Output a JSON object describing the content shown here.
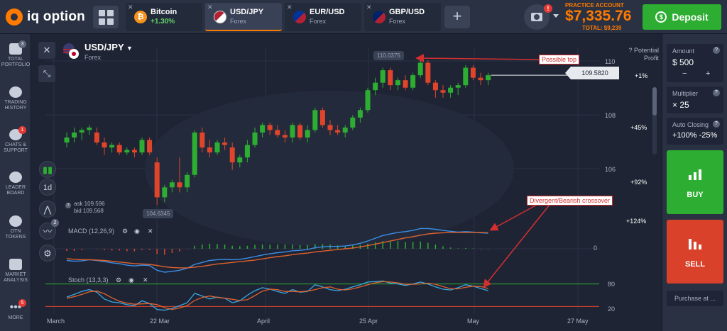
{
  "app": {
    "logo_text": "iq option"
  },
  "tabs": [
    {
      "name": "Bitcoin",
      "sub": "+1.30%",
      "flag": "bitcoin-icon",
      "active": false
    },
    {
      "name": "USD/JPY",
      "sub": "Forex",
      "flag": "us-jp-flag",
      "active": true
    },
    {
      "name": "EUR/USD",
      "sub": "Forex",
      "flag": "eu-us-flag",
      "active": false
    },
    {
      "name": "GBP/USD",
      "sub": "Forex",
      "flag": "gb-us-flag",
      "active": false
    }
  ],
  "account": {
    "type": "PRACTICE ACCOUNT",
    "balance": "$7,335.76",
    "total": "TOTAL: $9,239",
    "camera_badge": "!",
    "deposit_label": "Deposit"
  },
  "sidebar": [
    {
      "label": "TOTAL PORTFOLIO",
      "icon": "portfolio-icon",
      "badge": "3"
    },
    {
      "label": "TRADING HISTORY",
      "icon": "history-icon",
      "badge": ""
    },
    {
      "label": "CHATS & SUPPORT",
      "icon": "chat-icon",
      "badge": "1"
    },
    {
      "label": "LEADER BOARD",
      "icon": "leaderboard-icon",
      "badge": ""
    },
    {
      "label": "OTN TOKENS",
      "icon": "otn-icon",
      "badge": ""
    },
    {
      "label": "MARKET ANALYSIS",
      "icon": "market-analysis-icon",
      "badge": ""
    },
    {
      "label": "MORE",
      "icon": "more-icon",
      "badge": "5"
    }
  ],
  "chart": {
    "pair": "USD/JPY",
    "category": "Forex",
    "timeframe": "1d",
    "ask": "ask 109.596",
    "bid": "bid 109.568",
    "current_price": "109.5820",
    "high_callout": "110.0375",
    "low_callout": "104.6345",
    "potential_profit": "Potential Profit",
    "indicators_badge": "2",
    "annotations": {
      "top": "Possible top",
      "crossover": "Divergent/Bearish crossover"
    },
    "macd_label": "MACD (12,26,9)",
    "stoch_label": "Stoch (13,3,3)",
    "price_axis": [
      "110",
      "108",
      "106"
    ],
    "pct_axis": [
      "+1%",
      "+45%",
      "+92%",
      "+124%"
    ],
    "macd_axis": [
      "0"
    ],
    "stoch_axis": [
      "80",
      "20"
    ],
    "x_axis": [
      "March",
      "22 Mar",
      "April",
      "25 Apr",
      "May",
      "27 May"
    ],
    "colors": {
      "up": "#2dae32",
      "down": "#e0452c",
      "macd": "#3a8ee6",
      "signal": "#e0622c",
      "stoch_k": "#3aa9e6",
      "stoch_d": "#e0622c",
      "annotation": "#d32f2f"
    }
  },
  "chart_data": {
    "type": "candlestick",
    "y_unit": "JPY per USD",
    "candles": [
      [
        107.1,
        107.5,
        106.9,
        107.3
      ],
      [
        107.3,
        107.7,
        107.1,
        107.5
      ],
      [
        107.5,
        107.7,
        107.2,
        107.6
      ],
      [
        107.6,
        107.8,
        107.4,
        107.7
      ],
      [
        107.5,
        107.7,
        107.0,
        107.1
      ],
      [
        107.1,
        107.3,
        106.6,
        106.9
      ],
      [
        106.9,
        107.1,
        106.7,
        107.0
      ],
      [
        107.0,
        107.1,
        106.6,
        106.7
      ],
      [
        106.7,
        106.9,
        106.6,
        106.8
      ],
      [
        106.8,
        106.9,
        106.5,
        106.7
      ],
      [
        106.7,
        107.3,
        106.6,
        107.2
      ],
      [
        107.2,
        107.3,
        106.6,
        106.7
      ],
      [
        106.3,
        106.5,
        104.6,
        104.9
      ],
      [
        104.9,
        105.4,
        104.7,
        105.3
      ],
      [
        105.3,
        105.6,
        105.1,
        105.5
      ],
      [
        105.5,
        106.5,
        105.1,
        105.3
      ],
      [
        105.3,
        105.9,
        105.1,
        105.8
      ],
      [
        105.8,
        107.6,
        105.7,
        107.5
      ],
      [
        107.5,
        107.7,
        106.7,
        106.9
      ],
      [
        106.9,
        107.2,
        106.5,
        106.7
      ],
      [
        106.7,
        107.2,
        106.6,
        107.1
      ],
      [
        107.1,
        107.3,
        106.8,
        107.0
      ],
      [
        106.9,
        107.1,
        106.0,
        106.3
      ],
      [
        106.3,
        106.6,
        106.1,
        106.5
      ],
      [
        106.5,
        107.2,
        106.3,
        107.0
      ],
      [
        107.0,
        107.7,
        106.9,
        107.5
      ],
      [
        107.5,
        107.9,
        107.3,
        107.8
      ],
      [
        107.8,
        107.9,
        107.4,
        107.6
      ],
      [
        107.6,
        107.8,
        107.3,
        107.4
      ],
      [
        107.4,
        107.6,
        107.1,
        107.3
      ],
      [
        107.3,
        107.9,
        107.1,
        107.8
      ],
      [
        107.8,
        107.9,
        107.2,
        107.3
      ],
      [
        107.3,
        107.8,
        107.1,
        107.6
      ],
      [
        107.6,
        108.5,
        107.5,
        108.4
      ],
      [
        108.4,
        108.5,
        107.7,
        107.8
      ],
      [
        107.8,
        108.0,
        107.4,
        107.6
      ],
      [
        107.6,
        107.8,
        107.4,
        107.5
      ],
      [
        107.5,
        107.8,
        107.3,
        107.7
      ],
      [
        107.7,
        108.2,
        107.6,
        108.1
      ],
      [
        108.1,
        108.5,
        107.9,
        108.4
      ],
      [
        108.4,
        109.3,
        108.3,
        109.2
      ],
      [
        109.2,
        109.7,
        109.0,
        109.5
      ],
      [
        109.5,
        110.1,
        109.3,
        110.0
      ],
      [
        110.0,
        110.1,
        109.2,
        109.4
      ],
      [
        109.4,
        109.7,
        109.2,
        109.6
      ],
      [
        109.6,
        109.8,
        109.2,
        109.3
      ],
      [
        109.3,
        109.9,
        109.2,
        109.8
      ],
      [
        109.8,
        110.4,
        109.7,
        110.3
      ],
      [
        110.3,
        110.4,
        109.4,
        109.5
      ],
      [
        109.5,
        109.6,
        108.9,
        109.2
      ],
      [
        109.2,
        109.4,
        108.9,
        109.1
      ],
      [
        109.1,
        109.4,
        108.9,
        109.3
      ],
      [
        109.3,
        109.5,
        109.0,
        109.4
      ],
      [
        109.4,
        110.2,
        109.3,
        110.1
      ],
      [
        110.1,
        110.2,
        109.6,
        109.7
      ],
      [
        109.7,
        109.9,
        109.4,
        109.6
      ],
      [
        109.6,
        109.9,
        109.4,
        109.8
      ]
    ],
    "macd": [
      -0.3,
      -0.32,
      -0.31,
      -0.28,
      -0.3,
      -0.33,
      -0.36,
      -0.38,
      -0.42,
      -0.44,
      -0.42,
      -0.43,
      -0.55,
      -0.6,
      -0.58,
      -0.55,
      -0.5,
      -0.4,
      -0.35,
      -0.3,
      -0.28,
      -0.27,
      -0.28,
      -0.27,
      -0.24,
      -0.2,
      -0.16,
      -0.13,
      -0.1,
      -0.08,
      -0.05,
      -0.04,
      -0.02,
      0.03,
      0.05,
      0.06,
      0.06,
      0.07,
      0.1,
      0.14,
      0.2,
      0.27,
      0.34,
      0.38,
      0.42,
      0.44,
      0.47,
      0.52,
      0.52,
      0.5,
      0.47,
      0.45,
      0.43,
      0.44,
      0.43,
      0.41,
      0.4
    ],
    "macd_signal": [
      -0.25,
      -0.27,
      -0.28,
      -0.28,
      -0.29,
      -0.3,
      -0.32,
      -0.34,
      -0.36,
      -0.38,
      -0.39,
      -0.4,
      -0.43,
      -0.46,
      -0.48,
      -0.49,
      -0.49,
      -0.47,
      -0.45,
      -0.42,
      -0.39,
      -0.37,
      -0.35,
      -0.33,
      -0.31,
      -0.29,
      -0.26,
      -0.23,
      -0.2,
      -0.18,
      -0.15,
      -0.13,
      -0.11,
      -0.08,
      -0.06,
      -0.04,
      -0.02,
      0.0,
      0.02,
      0.05,
      0.08,
      0.12,
      0.16,
      0.2,
      0.24,
      0.28,
      0.31,
      0.35,
      0.38,
      0.4,
      0.41,
      0.42,
      0.42,
      0.42,
      0.42,
      0.42,
      0.41
    ],
    "stoch_k": [
      45,
      52,
      60,
      65,
      58,
      40,
      32,
      30,
      25,
      22,
      35,
      28,
      12,
      10,
      15,
      22,
      30,
      55,
      48,
      40,
      45,
      42,
      30,
      35,
      50,
      62,
      70,
      66,
      60,
      55,
      65,
      58,
      60,
      78,
      72,
      65,
      62,
      66,
      72,
      78,
      85,
      86,
      88,
      82,
      80,
      76,
      80,
      85,
      80,
      72,
      66,
      64,
      70,
      78,
      74,
      68,
      62
    ],
    "stoch_d": [
      42,
      46,
      52,
      59,
      61,
      54,
      43,
      34,
      29,
      26,
      27,
      28,
      25,
      17,
      12,
      16,
      22,
      36,
      44,
      48,
      44,
      42,
      39,
      36,
      38,
      49,
      61,
      66,
      65,
      60,
      60,
      59,
      61,
      65,
      70,
      72,
      66,
      64,
      67,
      72,
      78,
      83,
      86,
      85,
      83,
      79,
      79,
      80,
      82,
      79,
      73,
      67,
      67,
      71,
      74,
      73,
      68
    ],
    "y_range": [
      104.0,
      110.6
    ],
    "stoch_range": [
      0,
      100
    ],
    "stoch_levels": [
      80,
      20
    ]
  },
  "panel": {
    "amount_label": "Amount",
    "amount_value": "$ 500",
    "minus": "−",
    "plus": "+",
    "multiplier_label": "Multiplier",
    "multiplier_value": "× 25",
    "autoclose_label": "Auto Closing",
    "autoclose_value": "+100% -25%",
    "help": "?",
    "buy_label": "BUY",
    "sell_label": "SELL",
    "purchase_label": "Purchase at ..."
  }
}
